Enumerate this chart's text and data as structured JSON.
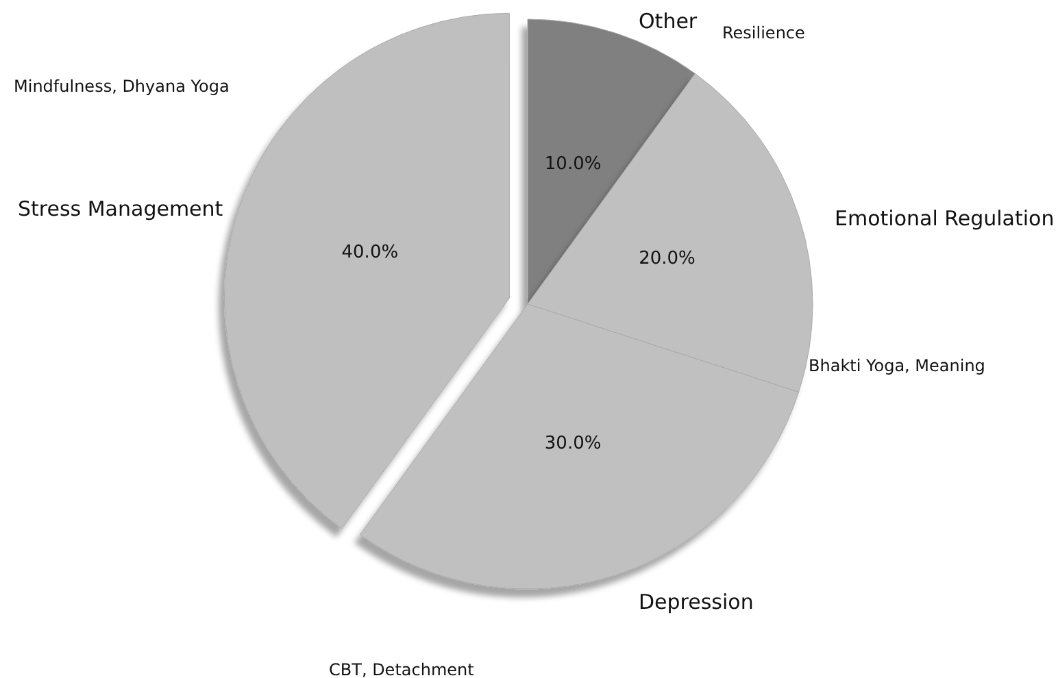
{
  "chart_data": {
    "type": "pie",
    "categories": [
      "Other",
      "Emotional Regulation",
      "Depression",
      "Stress Management"
    ],
    "values": [
      10,
      20,
      30,
      40
    ],
    "colors": [
      "#808080",
      "#c0c0c0",
      "#c0c0c0",
      "#bfbfbf"
    ],
    "value_labels": [
      "10.0%",
      "20.0%",
      "30.0%",
      "40.0%"
    ],
    "annotations": [
      "Resilience",
      "Bhakti Yoga, Meaning",
      "CBT, Detachment",
      "Mindfulness, Dhyana Yoga"
    ],
    "legend": false
  }
}
